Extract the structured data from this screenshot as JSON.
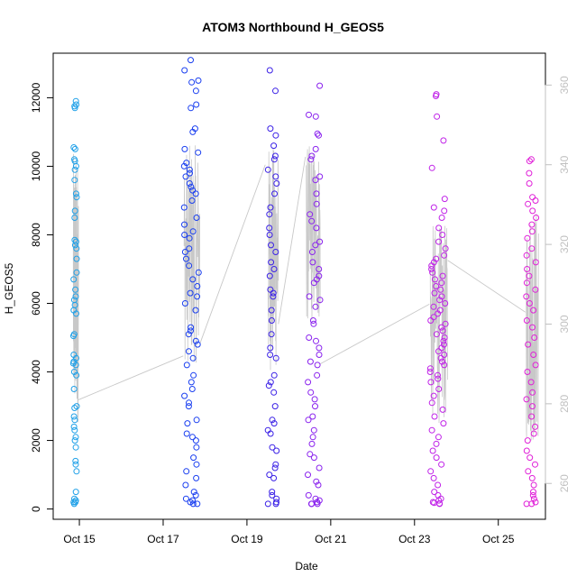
{
  "chart_data": {
    "type": "scatter",
    "title": "ATOM3 Northbound H_GEOS5",
    "xlabel": "Date",
    "ylabel": "H_GEOS5",
    "x_ticks": [
      {
        "date": "2016-10-15",
        "label": "Oct 15"
      },
      {
        "date": "2016-10-17",
        "label": "Oct 17"
      },
      {
        "date": "2016-10-19",
        "label": "Oct 19"
      },
      {
        "date": "2016-10-21",
        "label": "Oct 21"
      },
      {
        "date": "2016-10-23",
        "label": "Oct 23"
      },
      {
        "date": "2016-10-25",
        "label": "Oct 25"
      }
    ],
    "y_ticks": [
      0,
      2000,
      4000,
      6000,
      8000,
      10000,
      12000
    ],
    "y2_ticks": [
      260,
      280,
      300,
      320,
      340,
      360
    ],
    "xlim": [
      "2016-10-14 09:00",
      "2016-10-26 03:00"
    ],
    "ylim": [
      -300,
      13300
    ],
    "y2lim": [
      251,
      368
    ],
    "grid": false,
    "flights": [
      {
        "start": "2016-10-14 20:30",
        "end": "2016-10-14 22:30",
        "color": "#1fa0e8",
        "values": [
          11900,
          11800,
          11750,
          11700,
          10550,
          10500,
          10200,
          10150,
          10000,
          9900,
          9600,
          9200,
          9100,
          8700,
          8500,
          7850,
          7800,
          7700,
          7600,
          7300,
          6900,
          6700,
          6400,
          6200,
          6100,
          5950,
          5800,
          5700,
          5100,
          5050,
          4500,
          4400,
          4300,
          4250,
          4200,
          4000,
          3900,
          3500,
          3000,
          2950,
          2700,
          2600,
          2400,
          2300,
          2100,
          2000,
          1800,
          1400,
          1300,
          1100,
          500,
          300,
          250,
          200,
          200,
          150
        ]
      },
      {
        "start": "2016-10-17 12:00",
        "end": "2016-10-17 20:30",
        "color": "#1a3ff0",
        "values": [
          13100,
          12800,
          12500,
          12450,
          12200,
          11800,
          11700,
          11100,
          11000,
          10500,
          10400,
          10100,
          10000,
          9900,
          9800,
          9700,
          9500,
          9400,
          9300,
          9200,
          9000,
          8800,
          8500,
          8300,
          8100,
          8000,
          7900,
          7600,
          7500,
          7300,
          7100,
          6900,
          6700,
          6500,
          6300,
          6200,
          6000,
          5800,
          5300,
          5200,
          5100,
          4900,
          4800,
          4600,
          4400,
          4200,
          3900,
          3700,
          3500,
          3300,
          3100,
          3000,
          2600,
          2500,
          2200,
          2100,
          2000,
          1800,
          1500,
          1300,
          1100,
          900,
          700,
          500,
          400,
          300,
          250,
          200,
          150,
          150
        ]
      },
      {
        "start": "2016-10-19 12:00",
        "end": "2016-10-19 17:00",
        "color": "#3a20e6",
        "values": [
          12800,
          12200,
          11100,
          10900,
          10600,
          10300,
          10200,
          9900,
          9700,
          9500,
          9200,
          8800,
          8600,
          8200,
          8000,
          7700,
          7500,
          7200,
          7000,
          6800,
          6400,
          6300,
          6200,
          5800,
          5500,
          5100,
          4700,
          4500,
          4400,
          3900,
          3700,
          3600,
          3400,
          3000,
          2600,
          2500,
          2300,
          2200,
          1800,
          1700,
          1300,
          1200,
          1000,
          900,
          500,
          400,
          300,
          200,
          150,
          150
        ]
      },
      {
        "start": "2016-10-20 10:30",
        "end": "2016-10-20 18:00",
        "color": "#8a22ee",
        "values": [
          12350,
          11500,
          11450,
          10950,
          10900,
          10500,
          10300,
          10200,
          9700,
          9600,
          9200,
          8900,
          8600,
          8400,
          8200,
          7800,
          7700,
          7500,
          7200,
          7000,
          6800,
          6700,
          6600,
          6200,
          6100,
          5900,
          5500,
          5400,
          5000,
          4900,
          4700,
          4500,
          4300,
          4200,
          3900,
          3700,
          3400,
          3200,
          3000,
          2700,
          2600,
          2300,
          2100,
          1900,
          1600,
          1500,
          1200,
          1000,
          800,
          700,
          400,
          300,
          250,
          200,
          150,
          150,
          150
        ]
      },
      {
        "start": "2016-10-23 09:00",
        "end": "2016-10-23 18:00",
        "color": "#c022e8",
        "values": [
          12100,
          12050,
          11450,
          10750,
          9950,
          9050,
          8800,
          8700,
          8500,
          8200,
          8000,
          7800,
          7600,
          7400,
          7300,
          7200,
          7100,
          7000,
          6900,
          6800,
          6700,
          6600,
          6500,
          6400,
          6300,
          6200,
          6100,
          6000,
          5900,
          5800,
          5700,
          5600,
          5500,
          5400,
          5300,
          5200,
          5100,
          5000,
          4900,
          4800,
          4700,
          4600,
          4500,
          4400,
          4300,
          4200,
          4100,
          4000,
          3900,
          3800,
          3700,
          3500,
          3300,
          3100,
          2900,
          2700,
          2500,
          2300,
          2100,
          1900,
          1700,
          1500,
          1300,
          1100,
          900,
          700,
          500,
          400,
          300,
          250,
          200,
          180,
          160,
          150
        ]
      },
      {
        "start": "2016-10-25 16:00",
        "end": "2016-10-25 22:00",
        "color": "#e020d8",
        "values": [
          10200,
          10150,
          9800,
          9500,
          9100,
          9000,
          8900,
          8700,
          8500,
          8300,
          8100,
          7900,
          7600,
          7400,
          7200,
          7000,
          6800,
          6600,
          6400,
          6200,
          6000,
          5800,
          5500,
          5300,
          5000,
          4800,
          4500,
          4200,
          4000,
          3700,
          3400,
          3200,
          3000,
          2700,
          2400,
          2200,
          2000,
          1700,
          1500,
          1300,
          1100,
          900,
          700,
          500,
          400,
          300,
          200,
          150,
          150
        ]
      }
    ],
    "right_axis_series": {
      "name": "",
      "color": "#c8c8c8",
      "segments": [
        {
          "start": "2016-10-14 20:30",
          "end": "2016-10-14 23:30",
          "min": 275,
          "max": 343
        },
        {
          "start": "2016-10-17 12:00",
          "end": "2016-10-17 21:00",
          "min": 290,
          "max": 345
        },
        {
          "start": "2016-10-19 12:00",
          "end": "2016-10-19 18:00",
          "min": 288,
          "max": 345
        },
        {
          "start": "2016-10-20 10:00",
          "end": "2016-10-20 18:00",
          "min": 300,
          "max": 345
        },
        {
          "start": "2016-10-23 09:00",
          "end": "2016-10-23 19:00",
          "min": 275,
          "max": 325
        },
        {
          "start": "2016-10-25 16:00",
          "end": "2016-10-25 23:00",
          "min": 270,
          "max": 330
        }
      ],
      "connectors": [
        {
          "from": "2016-10-14 23:30",
          "from_value": 281,
          "to": "2016-10-17 11:30",
          "to_value": 292
        },
        {
          "from": "2016-10-17 21:00",
          "from_value": 295,
          "to": "2016-10-19 10:30",
          "to_value": 340
        },
        {
          "from": "2016-10-19 18:00",
          "from_value": 300,
          "to": "2016-10-20 09:30",
          "to_value": 342
        },
        {
          "from": "2016-10-20 18:00",
          "from_value": 290,
          "to": "2016-10-23 08:30",
          "to_value": 305
        },
        {
          "from": "2016-10-23 19:00",
          "from_value": 316,
          "to": "2016-10-25 15:30",
          "to_value": 303
        }
      ]
    }
  }
}
